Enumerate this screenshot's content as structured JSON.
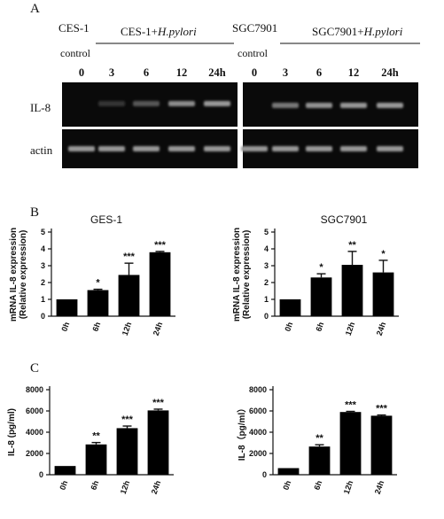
{
  "panelA": {
    "letter": "A",
    "left": {
      "cell": "CES-1",
      "control": "control",
      "infected_prefix": "CES-1+",
      "infected_italic": "H.pylori",
      "times": [
        "0",
        "3",
        "6",
        "12",
        "24h"
      ],
      "il8_intensity": [
        0.0,
        0.12,
        0.28,
        0.55,
        0.62
      ],
      "actin_intensity": [
        0.62,
        0.62,
        0.62,
        0.62,
        0.62
      ]
    },
    "right": {
      "cell": "SGC7901",
      "control": "control",
      "infected_prefix": "SGC7901+",
      "infected_italic": "H.pylori",
      "times": [
        "0",
        "3",
        "6",
        "12",
        "24h"
      ],
      "il8_intensity": [
        0.0,
        0.45,
        0.58,
        0.6,
        0.62
      ],
      "actin_intensity": [
        0.62,
        0.62,
        0.62,
        0.62,
        0.62
      ]
    },
    "row_labels": [
      "IL-8",
      "actin"
    ]
  },
  "panelB": {
    "letter": "B"
  },
  "panelC": {
    "letter": "C"
  },
  "chart_data": [
    {
      "type": "bar",
      "panel": "B",
      "title": "GES-1",
      "ylabel_line1": "mRNA IL-8 expression",
      "ylabel_line2": "(Relative expression)",
      "categories": [
        "0h",
        "6h",
        "12h",
        "24h"
      ],
      "values": [
        1.0,
        1.55,
        2.45,
        3.8
      ],
      "errors": [
        0.0,
        0.05,
        0.7,
        0.05
      ],
      "significance": [
        "",
        "*",
        "***",
        "***"
      ],
      "ylim": [
        0,
        5
      ],
      "yticks": [
        "0",
        "1",
        "2",
        "3",
        "4",
        "5"
      ]
    },
    {
      "type": "bar",
      "panel": "B",
      "title": "SGC7901",
      "ylabel_line1": "mRNA IL-8 expression",
      "ylabel_line2": "(Relative expression)",
      "categories": [
        "0h",
        "6h",
        "12h",
        "24h"
      ],
      "values": [
        1.0,
        2.3,
        3.05,
        2.6
      ],
      "errors": [
        0.0,
        0.22,
        0.8,
        0.72
      ],
      "significance": [
        "",
        "*",
        "**",
        "*"
      ],
      "ylim": [
        0,
        5
      ],
      "yticks": [
        "0",
        "1",
        "2",
        "3",
        "4",
        "5"
      ]
    },
    {
      "type": "bar",
      "panel": "C",
      "title": "",
      "ylabel_line1": "IL-8 (pg/ml)",
      "categories": [
        "0h",
        "6h",
        "12h",
        "24h"
      ],
      "values": [
        820,
        2850,
        4380,
        6050
      ],
      "errors": [
        0,
        180,
        200,
        120
      ],
      "significance": [
        "",
        "**",
        "***",
        "***"
      ],
      "ylim": [
        0,
        8000
      ],
      "yticks": [
        "0",
        "2000",
        "4000",
        "6000",
        "8000"
      ]
    },
    {
      "type": "bar",
      "panel": "C",
      "title": "",
      "ylabel_line1": "IL-8（pg/ml）",
      "categories": [
        "0h",
        "6h",
        "12h",
        "24h"
      ],
      "values": [
        620,
        2650,
        5900,
        5550
      ],
      "errors": [
        0,
        170,
        60,
        70
      ],
      "significance": [
        "",
        "**",
        "***",
        "***"
      ],
      "ylim": [
        0,
        8000
      ],
      "yticks": [
        "0",
        "2000",
        "4000",
        "6000",
        "8000"
      ]
    }
  ]
}
